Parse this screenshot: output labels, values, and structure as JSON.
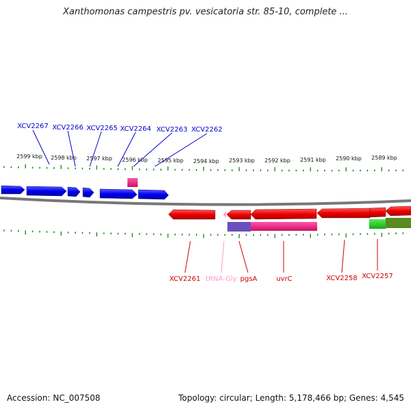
{
  "title": "Xanthomonas campestris pv. vesicatoria str. 85-10, complete ...",
  "ticks": [
    "2599 kbp",
    "2598 kbp",
    "2597 kbp",
    "2596 kbp",
    "2595 kbp",
    "2594 kbp",
    "2593 kbp",
    "2592 kbp",
    "2591 kbp",
    "2590 kbp",
    "2589 kbp"
  ],
  "genes_forward": [
    "XCV2267",
    "XCV2266",
    "XCV2265",
    "XCV2264",
    "XCV2263",
    "XCV2262"
  ],
  "genes_reverse": [
    "XCV2261",
    "tRNA-Gly",
    "pgsA",
    "uvrC",
    "XCV2258",
    "XCV2257"
  ],
  "footer": {
    "accession": "Accession: NC_007508",
    "topology": "Topology: circular; Length: 5,178,466 bp; Genes: 4,545"
  },
  "colors": {
    "forward_label": "#0000cc",
    "forward_gene": "#0000ee",
    "reverse_label": "#cc0000",
    "reverse_gene": "#ee0000",
    "trna_label": "#ff99cc",
    "pink_feature": "#ee1177",
    "purple_feature": "#6a4fc0",
    "green_feature": "#22cc22",
    "olive_feature": "#5a8a22",
    "tick_color": "#228822",
    "backbone": "#777777"
  }
}
